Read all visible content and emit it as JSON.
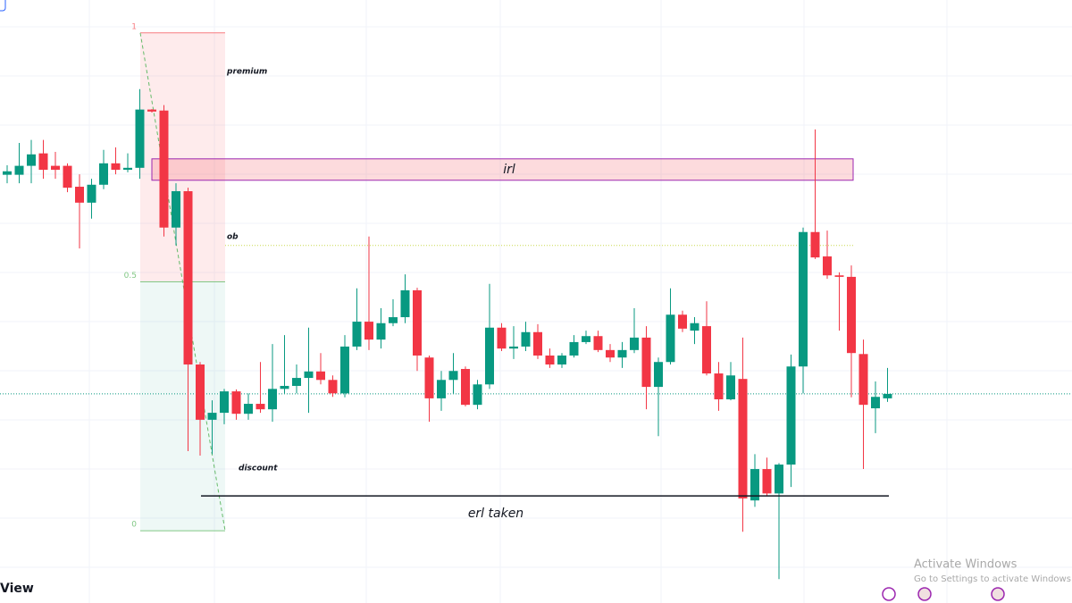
{
  "chart_data": {
    "type": "candlestick",
    "ylim": [
      -0.145,
      1.066
    ],
    "up_color": "#089981",
    "down_color": "#f23645",
    "open": [
      0.715,
      0.715,
      0.733,
      0.758,
      0.733,
      0.733,
      0.691,
      0.659,
      0.695,
      0.738,
      0.725,
      0.729,
      0.846,
      0.844,
      0.609,
      0.682,
      0.334,
      0.223,
      0.237,
      0.28,
      0.235,
      0.255,
      0.244,
      0.285,
      0.291,
      0.307,
      0.32,
      0.303,
      0.276,
      0.37,
      0.42,
      0.384,
      0.417,
      0.429,
      0.483,
      0.348,
      0.266,
      0.303,
      0.325,
      0.253,
      0.294,
      0.408,
      0.366,
      0.37,
      0.399,
      0.352,
      0.334,
      0.352,
      0.379,
      0.391,
      0.363,
      0.348,
      0.363,
      0.388,
      0.289,
      0.339,
      0.434,
      0.402,
      0.411,
      0.316,
      0.264,
      0.305,
      0.061,
      0.124,
      0.075,
      0.133,
      0.33,
      0.6,
      0.551,
      0.513,
      0.51,
      0.355,
      0.246,
      0.266
    ],
    "high": [
      0.734,
      0.779,
      0.785,
      0.785,
      0.761,
      0.738,
      0.716,
      0.707,
      0.765,
      0.77,
      0.758,
      0.887,
      0.847,
      0.855,
      0.698,
      0.689,
      0.339,
      0.262,
      0.285,
      0.284,
      0.276,
      0.339,
      0.375,
      0.393,
      0.334,
      0.408,
      0.357,
      0.312,
      0.393,
      0.487,
      0.591,
      0.447,
      0.465,
      0.515,
      0.488,
      0.352,
      0.321,
      0.357,
      0.33,
      0.303,
      0.496,
      0.417,
      0.411,
      0.42,
      0.415,
      0.366,
      0.357,
      0.393,
      0.402,
      0.402,
      0.375,
      0.379,
      0.447,
      0.411,
      0.348,
      0.487,
      0.442,
      0.429,
      0.461,
      0.339,
      0.339,
      0.388,
      0.154,
      0.147,
      0.136,
      0.354,
      0.609,
      0.806,
      0.603,
      0.519,
      0.533,
      0.384,
      0.3,
      0.327
    ],
    "low": [
      0.698,
      0.698,
      0.698,
      0.707,
      0.707,
      0.68,
      0.567,
      0.627,
      0.686,
      0.716,
      0.72,
      0.707,
      0.84,
      0.591,
      0.573,
      0.16,
      0.151,
      0.154,
      0.214,
      0.223,
      0.223,
      0.237,
      0.219,
      0.276,
      0.276,
      0.237,
      0.294,
      0.269,
      0.268,
      0.363,
      0.363,
      0.366,
      0.411,
      0.417,
      0.321,
      0.219,
      0.241,
      0.276,
      0.25,
      0.244,
      0.285,
      0.361,
      0.345,
      0.361,
      0.345,
      0.327,
      0.327,
      0.348,
      0.375,
      0.359,
      0.339,
      0.327,
      0.357,
      0.244,
      0.19,
      0.334,
      0.399,
      0.375,
      0.312,
      0.241,
      0.262,
      -0.002,
      0.048,
      0.07,
      -0.097,
      0.088,
      0.276,
      0.546,
      0.506,
      0.402,
      0.268,
      0.124,
      0.196,
      0.259
    ],
    "close": [
      0.722,
      0.733,
      0.756,
      0.725,
      0.725,
      0.689,
      0.659,
      0.695,
      0.738,
      0.725,
      0.729,
      0.846,
      0.842,
      0.609,
      0.682,
      0.334,
      0.223,
      0.237,
      0.28,
      0.235,
      0.255,
      0.244,
      0.285,
      0.291,
      0.307,
      0.32,
      0.303,
      0.276,
      0.37,
      0.42,
      0.384,
      0.417,
      0.429,
      0.483,
      0.352,
      0.266,
      0.303,
      0.321,
      0.253,
      0.294,
      0.408,
      0.366,
      0.37,
      0.399,
      0.352,
      0.334,
      0.352,
      0.379,
      0.391,
      0.363,
      0.348,
      0.363,
      0.388,
      0.289,
      0.339,
      0.434,
      0.406,
      0.417,
      0.316,
      0.264,
      0.312,
      0.065,
      0.124,
      0.075,
      0.133,
      0.33,
      0.6,
      0.549,
      0.513,
      0.51,
      0.357,
      0.253,
      0.269,
      0.275
    ],
    "fib_levels": [
      1,
      0.5,
      0
    ],
    "premium_label": "premium",
    "discount_label": "discount",
    "irl": {
      "label": "irl",
      "top": 0.747,
      "bottom": 0.704
    },
    "ob": {
      "label": "ob",
      "value": 0.573
    },
    "erl": {
      "label": "erl taken",
      "value": 0.07
    }
  },
  "watermark": {
    "logo": "View",
    "activate_title": "Activate Windows",
    "activate_text": "Go to Settings to activate Windows."
  }
}
